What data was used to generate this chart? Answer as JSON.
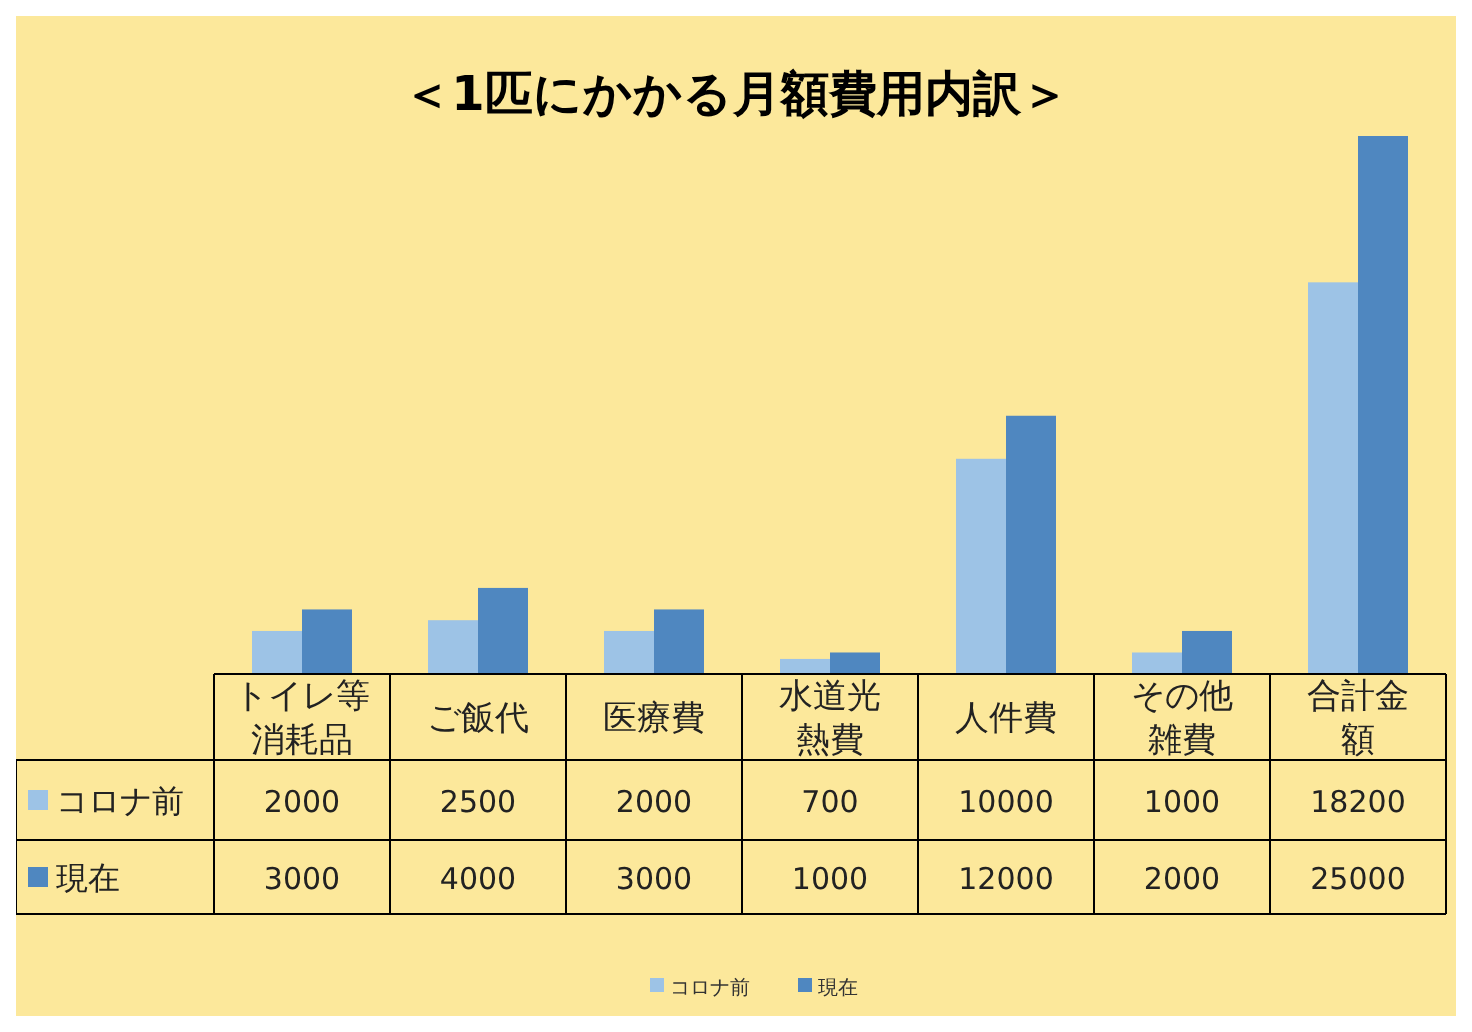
{
  "chart_data": {
    "type": "bar",
    "title": "＜1匹にかかる月額費用内訳＞",
    "categories": [
      "トイレ等消耗品",
      "ご飯代",
      "医療費",
      "水道光熱費",
      "人件費",
      "その他雑費",
      "合計金額"
    ],
    "series": [
      {
        "name": "コロナ前",
        "color": "#9dc3e6",
        "values": [
          2000,
          2500,
          2000,
          700,
          10000,
          1000,
          18200
        ]
      },
      {
        "name": "現在",
        "color": "#4f87c0",
        "values": [
          3000,
          4000,
          3000,
          1000,
          12000,
          2000,
          25000
        ]
      }
    ],
    "data_labels": true,
    "legend": "bottom"
  }
}
